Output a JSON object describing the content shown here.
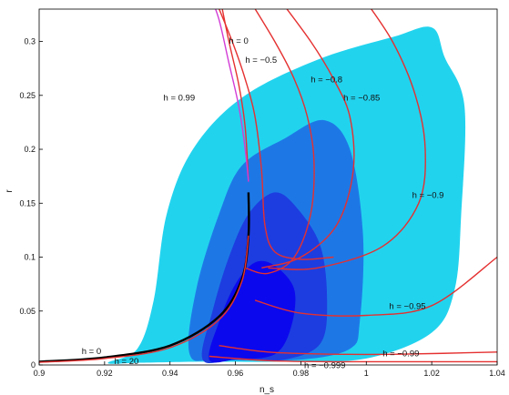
{
  "chart_data": {
    "type": "contour",
    "xlabel": "n_s",
    "ylabel": "r",
    "xlim": [
      0.9,
      1.04
    ],
    "ylim": [
      0,
      0.33
    ],
    "x_ticks": [
      "0.9",
      "0.92",
      "0.94",
      "0.96",
      "0.98",
      "1",
      "1.02",
      "1.04"
    ],
    "y_ticks": [
      "0",
      "0.05",
      "0.1",
      "0.15",
      "0.2",
      "0.25",
      "0.3"
    ],
    "grid": false,
    "colors": {
      "region_outer": "#22d3ee",
      "region_mid": "#1d78e6",
      "region_inner": "#1d3de0",
      "region_core": "#0b08ee",
      "curves_h": "#e53030",
      "curve_magenta": "#d23cd6",
      "curve_black": "#000000"
    },
    "contours": [
      {
        "level": "outer",
        "points": [
          [
            0.921,
            0.002
          ],
          [
            0.93,
            0.015
          ],
          [
            0.935,
            0.06
          ],
          [
            0.939,
            0.14
          ],
          [
            0.947,
            0.2
          ],
          [
            0.962,
            0.248
          ],
          [
            0.985,
            0.283
          ],
          [
            1.008,
            0.304
          ],
          [
            1.02,
            0.313
          ],
          [
            1.024,
            0.285
          ],
          [
            1.03,
            0.24
          ],
          [
            1.029,
            0.14
          ],
          [
            1.027,
            0.07
          ],
          [
            1.02,
            0.03
          ],
          [
            1.0,
            0.006
          ],
          [
            0.975,
            0.003
          ],
          [
            0.95,
            0.003
          ],
          [
            0.93,
            0.002
          ]
        ]
      },
      {
        "level": "mid",
        "points": [
          [
            0.946,
            0.01
          ],
          [
            0.948,
            0.07
          ],
          [
            0.955,
            0.14
          ],
          [
            0.962,
            0.185
          ],
          [
            0.975,
            0.21
          ],
          [
            0.987,
            0.227
          ],
          [
            0.995,
            0.2
          ],
          [
            0.999,
            0.12
          ],
          [
            0.998,
            0.04
          ],
          [
            0.995,
            0.015
          ],
          [
            0.98,
            0.005
          ],
          [
            0.955,
            0.005
          ]
        ]
      },
      {
        "level": "inner",
        "points": [
          [
            0.95,
            0.005
          ],
          [
            0.953,
            0.05
          ],
          [
            0.958,
            0.1
          ],
          [
            0.964,
            0.14
          ],
          [
            0.972,
            0.16
          ],
          [
            0.979,
            0.145
          ],
          [
            0.986,
            0.11
          ],
          [
            0.988,
            0.06
          ],
          [
            0.986,
            0.02
          ],
          [
            0.975,
            0.005
          ],
          [
            0.96,
            0.005
          ]
        ]
      },
      {
        "level": "core",
        "points": [
          [
            0.952,
            0.005
          ],
          [
            0.955,
            0.04
          ],
          [
            0.96,
            0.075
          ],
          [
            0.966,
            0.095
          ],
          [
            0.972,
            0.092
          ],
          [
            0.978,
            0.07
          ],
          [
            0.977,
            0.035
          ],
          [
            0.972,
            0.01
          ],
          [
            0.96,
            0.005
          ]
        ]
      }
    ],
    "curves": [
      {
        "label": "h = 0",
        "color": "red",
        "points": [
          [
            0.955,
            0.345
          ],
          [
            0.958,
            0.3
          ],
          [
            0.961,
            0.26
          ],
          [
            0.963,
            0.22
          ],
          [
            0.964,
            0.17
          ]
        ]
      },
      {
        "label": "h = −0.5",
        "color": "red",
        "points": [
          [
            0.953,
            0.345
          ],
          [
            0.959,
            0.3
          ],
          [
            0.963,
            0.265
          ],
          [
            0.966,
            0.23
          ],
          [
            0.968,
            0.18
          ],
          [
            0.969,
            0.13
          ],
          [
            0.972,
            0.105
          ],
          [
            0.98,
            0.098
          ],
          [
            0.99,
            0.1
          ]
        ]
      },
      {
        "label": "h = −0.8",
        "color": "red",
        "points": [
          [
            0.963,
            0.345
          ],
          [
            0.972,
            0.3
          ],
          [
            0.978,
            0.265
          ],
          [
            0.982,
            0.23
          ],
          [
            0.984,
            0.19
          ],
          [
            0.983,
            0.14
          ],
          [
            0.978,
            0.1
          ],
          [
            0.97,
            0.085
          ],
          [
            0.963,
            0.09
          ]
        ]
      },
      {
        "label": "h = −0.85",
        "color": "red",
        "points": [
          [
            0.972,
            0.345
          ],
          [
            0.983,
            0.3
          ],
          [
            0.99,
            0.265
          ],
          [
            0.995,
            0.23
          ],
          [
            0.996,
            0.18
          ],
          [
            0.991,
            0.13
          ],
          [
            0.98,
            0.1
          ],
          [
            0.968,
            0.09
          ]
        ]
      },
      {
        "label": "h = −0.9",
        "color": "red",
        "points": [
          [
            0.998,
            0.345
          ],
          [
            1.008,
            0.3
          ],
          [
            1.015,
            0.25
          ],
          [
            1.018,
            0.2
          ],
          [
            1.016,
            0.15
          ],
          [
            1.005,
            0.11
          ],
          [
            0.985,
            0.09
          ],
          [
            0.97,
            0.09
          ]
        ]
      },
      {
        "label": "h = −0.95",
        "color": "red",
        "points": [
          [
            0.966,
            0.06
          ],
          [
            0.98,
            0.048
          ],
          [
            1.0,
            0.046
          ],
          [
            1.02,
            0.055
          ],
          [
            1.04,
            0.1
          ]
        ]
      },
      {
        "label": "h = −0.99",
        "color": "red",
        "points": [
          [
            0.955,
            0.018
          ],
          [
            0.97,
            0.012
          ],
          [
            0.99,
            0.01
          ],
          [
            1.01,
            0.01
          ],
          [
            1.04,
            0.012
          ]
        ]
      },
      {
        "label": "h = −0.999",
        "color": "red",
        "points": [
          [
            0.952,
            0.008
          ],
          [
            0.97,
            0.004
          ],
          [
            0.99,
            0.003
          ],
          [
            1.04,
            0.003
          ]
        ]
      },
      {
        "label": "h = 0.99",
        "color": "magenta",
        "points": [
          [
            0.952,
            0.345
          ],
          [
            0.955,
            0.32
          ],
          [
            0.958,
            0.28
          ],
          [
            0.961,
            0.24
          ],
          [
            0.963,
            0.2
          ],
          [
            0.964,
            0.17
          ]
        ]
      },
      {
        "label": "",
        "color": "black",
        "points": [
          [
            0.9,
            0.003
          ],
          [
            0.92,
            0.007
          ],
          [
            0.94,
            0.018
          ],
          [
            0.955,
            0.045
          ],
          [
            0.962,
            0.08
          ],
          [
            0.964,
            0.12
          ],
          [
            0.964,
            0.16
          ]
        ]
      },
      {
        "label": "",
        "color": "red",
        "points": [
          [
            0.9,
            0.0025
          ],
          [
            0.92,
            0.006
          ],
          [
            0.94,
            0.016
          ],
          [
            0.955,
            0.042
          ],
          [
            0.962,
            0.078
          ],
          [
            0.964,
            0.12
          ]
        ]
      }
    ],
    "annotations": [
      {
        "text": "h = 0",
        "x": 0.958,
        "y": 0.298
      },
      {
        "text": "h = −0.5",
        "x": 0.963,
        "y": 0.28
      },
      {
        "text": "h = −0.8",
        "x": 0.983,
        "y": 0.262
      },
      {
        "text": "h = −0.85",
        "x": 0.993,
        "y": 0.245
      },
      {
        "text": "h = 0.99",
        "x": 0.938,
        "y": 0.245
      },
      {
        "text": "h = −0.9",
        "x": 1.014,
        "y": 0.155
      },
      {
        "text": "h = −0.95",
        "x": 1.007,
        "y": 0.052
      },
      {
        "text": "h = −0.99",
        "x": 1.005,
        "y": 0.008
      },
      {
        "text": "h = −0.999",
        "x": 0.981,
        "y": -0.003
      },
      {
        "text": "h = 0",
        "x": 0.913,
        "y": 0.01
      },
      {
        "text": "h = 20",
        "x": 0.923,
        "y": 0.001
      }
    ]
  }
}
